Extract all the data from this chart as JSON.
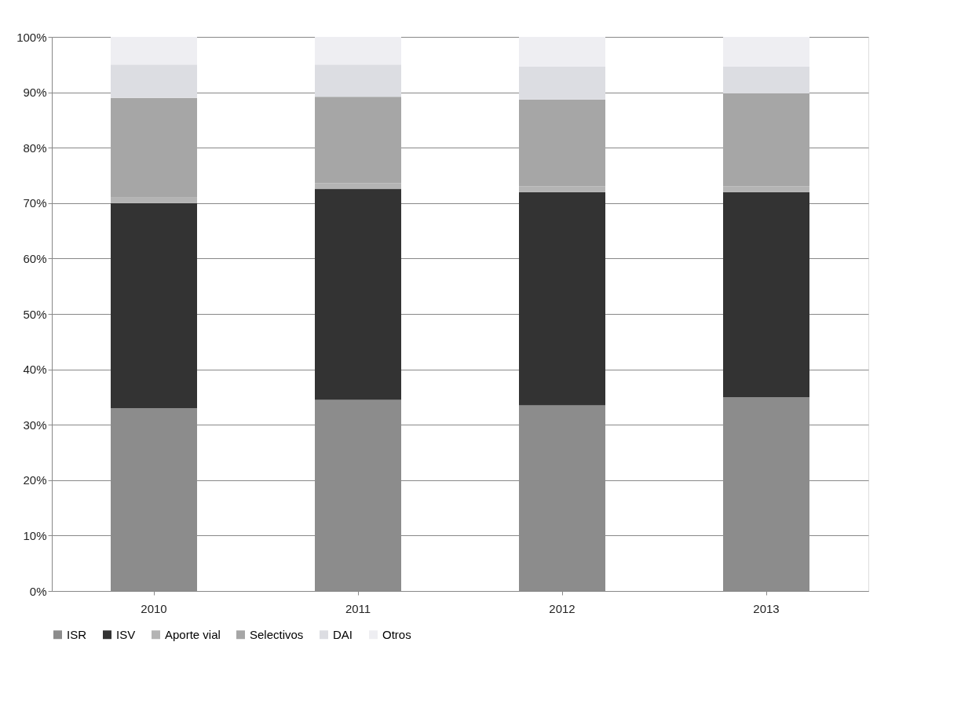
{
  "chart_data": {
    "type": "bar",
    "stacked": true,
    "categories": [
      "2010",
      "2011",
      "2012",
      "2013"
    ],
    "series": [
      {
        "name": "ISR",
        "color": "#8c8c8c",
        "values": [
          33,
          34.5,
          33.5,
          35
        ]
      },
      {
        "name": "ISV",
        "color": "#333333",
        "values": [
          37,
          38.1,
          38.5,
          37
        ]
      },
      {
        "name": "Aporte vial",
        "color": "#b4b4b4",
        "values": [
          1,
          1,
          1,
          1
        ]
      },
      {
        "name": "Selectivos",
        "color": "#a6a6a6",
        "values": [
          18,
          15.6,
          15.7,
          16.8
        ]
      },
      {
        "name": "DAI",
        "color": "#dcdde2",
        "values": [
          6,
          5.8,
          5.9,
          4.8
        ]
      },
      {
        "name": "Otros",
        "color": "#eeeef2",
        "values": [
          5,
          5,
          5.4,
          5.4
        ]
      }
    ],
    "ylim": [
      0,
      100
    ],
    "yticks": [
      {
        "value": 0,
        "label": "0%"
      },
      {
        "value": 10,
        "label": "10%"
      },
      {
        "value": 20,
        "label": "20%"
      },
      {
        "value": 30,
        "label": "30%"
      },
      {
        "value": 40,
        "label": "40%"
      },
      {
        "value": 50,
        "label": "50%"
      },
      {
        "value": 60,
        "label": "60%"
      },
      {
        "value": 70,
        "label": "70%"
      },
      {
        "value": 80,
        "label": "80%"
      },
      {
        "value": 90,
        "label": "90%"
      },
      {
        "value": 100,
        "label": "100%"
      }
    ],
    "grid": "y",
    "legend": "bottom"
  }
}
